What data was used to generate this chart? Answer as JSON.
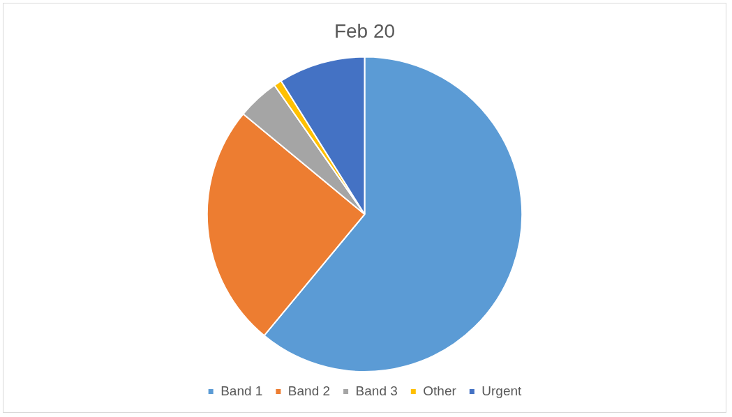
{
  "chart_data": {
    "type": "pie",
    "title": "Feb 20",
    "categories": [
      "Band 1",
      "Band 2",
      "Band 3",
      "Other",
      "Urgent"
    ],
    "values": [
      61,
      25,
      4.3,
      0.8,
      8.9
    ],
    "colors": [
      "#5b9bd5",
      "#ed7d31",
      "#a5a5a5",
      "#ffc000",
      "#4472c4"
    ],
    "legend": "bottom"
  }
}
